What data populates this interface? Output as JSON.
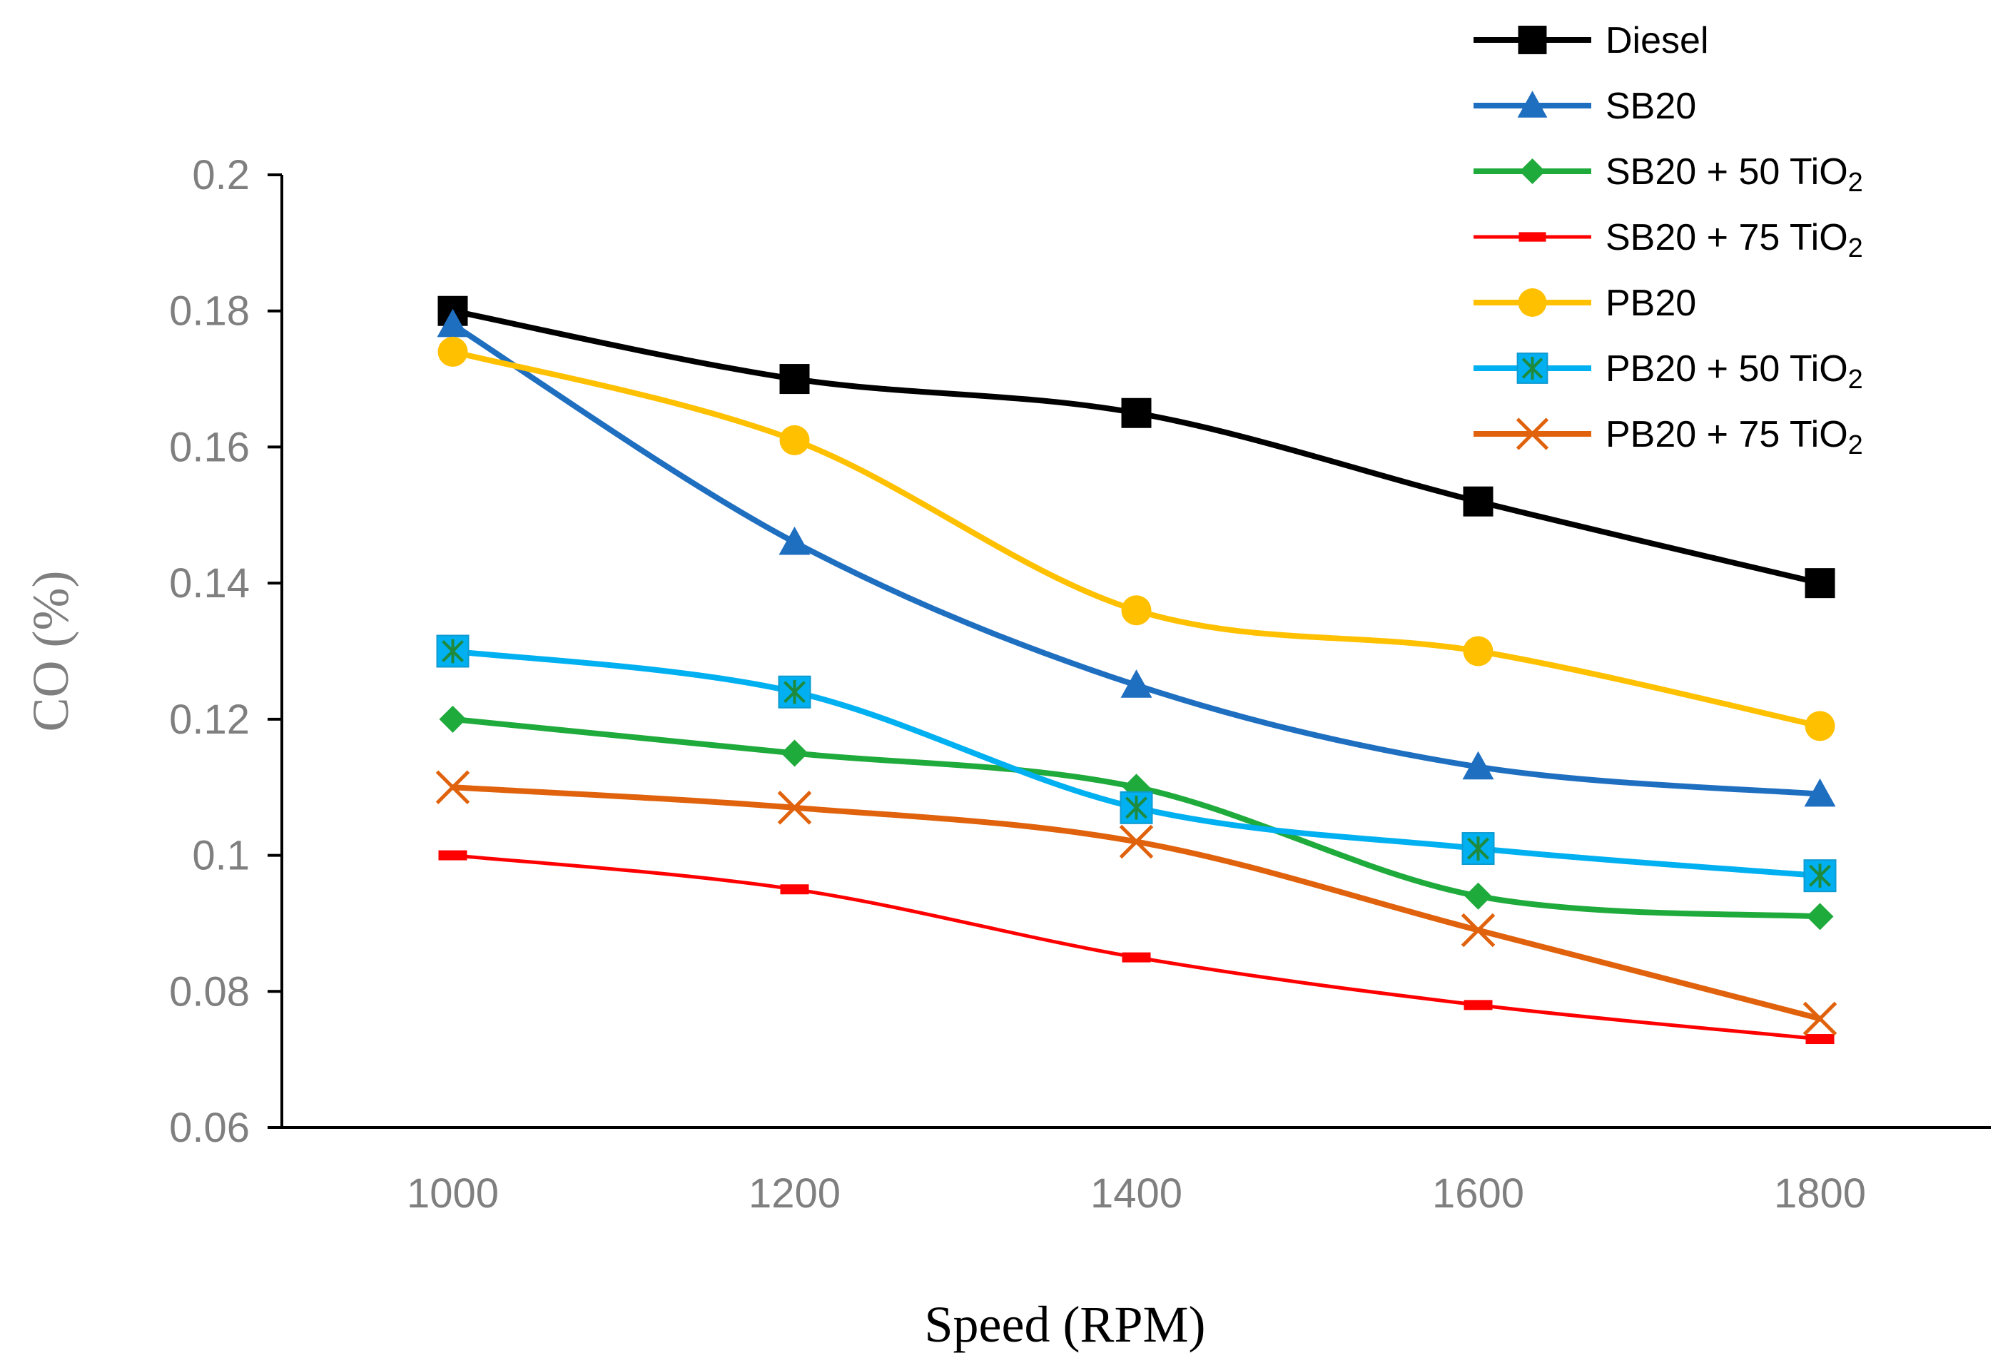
{
  "chart_data": {
    "type": "line",
    "title": "",
    "xlabel": "Speed (RPM)",
    "ylabel": "CO (%)",
    "x": [
      1000,
      1200,
      1400,
      1600,
      1800
    ],
    "x_tick_labels": [
      "1000",
      "1200",
      "1400",
      "1600",
      "1800"
    ],
    "xlim": [
      900,
      1900
    ],
    "ylim": [
      0.06,
      0.2
    ],
    "y_ticks": [
      0.06,
      0.08,
      0.1,
      0.12,
      0.14,
      0.16,
      0.18,
      0.2
    ],
    "y_tick_labels": [
      "0.06",
      "0.08",
      "0.1",
      "0.12",
      "0.14",
      "0.16",
      "0.18",
      "0.2"
    ],
    "grid": false,
    "legend_position": "top-right",
    "series": [
      {
        "name": "Diesel",
        "label_main": "Diesel",
        "label_sub": "",
        "color": "#000000",
        "marker": "square",
        "values": [
          0.18,
          0.17,
          0.165,
          0.152,
          0.14
        ]
      },
      {
        "name": "SB20",
        "label_main": "SB20",
        "label_sub": "",
        "color": "#1f6fc1",
        "marker": "triangle",
        "values": [
          0.178,
          0.146,
          0.125,
          0.113,
          0.109
        ]
      },
      {
        "name": "SB20 + 50 TiO2",
        "label_main": "SB20 + 50 TiO",
        "label_sub": "2",
        "color": "#1faa3c",
        "marker": "diamond",
        "values": [
          0.12,
          0.115,
          0.11,
          0.094,
          0.091
        ]
      },
      {
        "name": "SB20 + 75 TiO2",
        "label_main": "SB20 + 75 TiO",
        "label_sub": "2",
        "color": "#ff0000",
        "marker": "dash",
        "values": [
          0.1,
          0.095,
          0.085,
          0.078,
          0.073
        ]
      },
      {
        "name": "PB20",
        "label_main": "PB20",
        "label_sub": "",
        "color": "#ffc000",
        "marker": "circle",
        "values": [
          0.174,
          0.161,
          0.136,
          0.13,
          0.119
        ]
      },
      {
        "name": "PB20 + 50 TiO2",
        "label_main": "PB20 + 50 TiO",
        "label_sub": "2",
        "color": "#00b0f0",
        "marker": "square-star",
        "values": [
          0.13,
          0.124,
          0.107,
          0.101,
          0.097
        ]
      },
      {
        "name": "PB20 + 75 TiO2",
        "label_main": "PB20 + 75 TiO",
        "label_sub": "2",
        "color": "#e0620d",
        "marker": "x",
        "values": [
          0.11,
          0.107,
          0.102,
          0.089,
          0.076
        ]
      }
    ]
  }
}
